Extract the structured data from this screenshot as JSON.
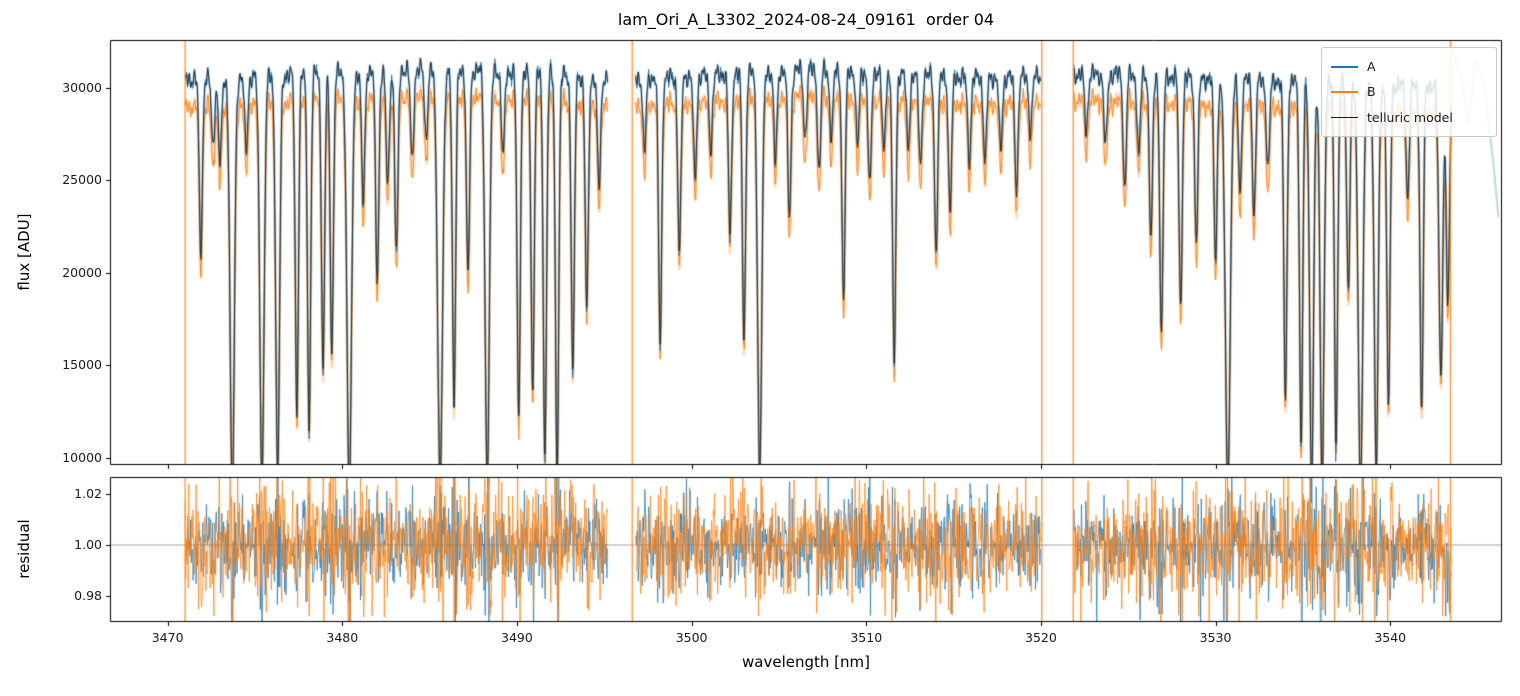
{
  "chart_data": {
    "type": "line",
    "title": "lam_Ori_A_L3302_2024-08-24_09161  order 04",
    "xlabel": "wavelength [nm]",
    "ylabel_flux": "flux [ADU]",
    "ylabel_residual": "residual",
    "xlim": [
      3466.7,
      3546.4
    ],
    "flux_ylim": [
      9600,
      32600
    ],
    "residual_ylim": [
      0.97,
      1.0265
    ],
    "x_ticks": [
      3470,
      3480,
      3490,
      3500,
      3510,
      3520,
      3530,
      3540
    ],
    "flux_ticks": [
      10000,
      15000,
      20000,
      25000,
      30000
    ],
    "residual_ticks": [
      0.98,
      1.0,
      1.02
    ],
    "residual_reference": 1.0,
    "grid": false,
    "legend_position": "upper right",
    "legend": [
      {
        "label": "A",
        "color": "#1f77b4"
      },
      {
        "label": "B",
        "color": "#ff7f0e"
      },
      {
        "label": "telluric model",
        "color": "#1a1a1a"
      }
    ],
    "series": {
      "A": {
        "color": "#1f77b4",
        "continuum_level": 31050
      },
      "B": {
        "color": "#ff7f0e",
        "continuum_level": 29570
      },
      "telluric_model": {
        "color": "#1a1a1a"
      }
    },
    "segments": [
      [
        3471.0,
        3495.2
      ],
      [
        3496.8,
        3520.0
      ],
      [
        3521.9,
        3543.5
      ]
    ],
    "continuum": {
      "A_base": 31050,
      "B_offset": -1480,
      "bumps": [
        [
          3485.5,
          650,
          5.5
        ],
        [
          3507.0,
          600,
          5.0
        ],
        [
          3523.5,
          350,
          4.0
        ],
        [
          3476.0,
          150,
          3.0
        ],
        [
          3541.0,
          -300,
          4.0
        ]
      ]
    },
    "absorption_lines": [
      [
        3471.9,
        0.31
      ],
      [
        3472.6,
        0.12
      ],
      [
        3473.0,
        0.15
      ],
      [
        3473.7,
        0.75,
        0.12
      ],
      [
        3474.5,
        0.13
      ],
      [
        3475.4,
        0.72,
        0.12
      ],
      [
        3476.3,
        0.7,
        0.11
      ],
      [
        3477.4,
        0.6
      ],
      [
        3478.1,
        0.63
      ],
      [
        3478.9,
        0.52
      ],
      [
        3479.4,
        0.49
      ],
      [
        3480.4,
        0.74,
        0.13
      ],
      [
        3481.2,
        0.23
      ],
      [
        3482.0,
        0.37
      ],
      [
        3482.6,
        0.2
      ],
      [
        3483.1,
        0.32
      ],
      [
        3484.0,
        0.16
      ],
      [
        3484.8,
        0.12
      ],
      [
        3485.6,
        0.72,
        0.14
      ],
      [
        3486.4,
        0.59
      ],
      [
        3487.2,
        0.36
      ],
      [
        3488.3,
        0.72,
        0.12
      ],
      [
        3489.2,
        0.15
      ],
      [
        3490.1,
        0.61
      ],
      [
        3490.9,
        0.56
      ],
      [
        3491.6,
        0.68
      ],
      [
        3492.3,
        0.72
      ],
      [
        3493.2,
        0.52
      ],
      [
        3494.0,
        0.41
      ],
      [
        3494.7,
        0.2
      ],
      [
        3497.3,
        0.13
      ],
      [
        3498.2,
        0.47
      ],
      [
        3499.3,
        0.31
      ],
      [
        3500.2,
        0.18
      ],
      [
        3501.1,
        0.13
      ],
      [
        3502.2,
        0.28
      ],
      [
        3503.0,
        0.47
      ],
      [
        3503.9,
        0.7,
        0.12
      ],
      [
        3504.8,
        0.16
      ],
      [
        3505.6,
        0.26
      ],
      [
        3506.5,
        0.12
      ],
      [
        3507.3,
        0.18
      ],
      [
        3508.0,
        0.12
      ],
      [
        3508.7,
        0.4
      ],
      [
        3509.5,
        0.13
      ],
      [
        3510.2,
        0.2
      ],
      [
        3511.0,
        0.14
      ],
      [
        3511.6,
        0.51
      ],
      [
        3512.4,
        0.13
      ],
      [
        3513.1,
        0.16
      ],
      [
        3514.0,
        0.31
      ],
      [
        3514.8,
        0.24
      ],
      [
        3515.9,
        0.15
      ],
      [
        3516.8,
        0.15
      ],
      [
        3517.7,
        0.13
      ],
      [
        3518.6,
        0.2
      ],
      [
        3519.4,
        0.1
      ],
      [
        3522.6,
        0.1
      ],
      [
        3523.7,
        0.13
      ],
      [
        3524.8,
        0.2
      ],
      [
        3525.6,
        0.14
      ],
      [
        3526.3,
        0.29
      ],
      [
        3526.9,
        0.46
      ],
      [
        3528.0,
        0.41
      ],
      [
        3528.9,
        0.29
      ],
      [
        3530.0,
        0.32
      ],
      [
        3530.7,
        0.72,
        0.14
      ],
      [
        3531.4,
        0.2
      ],
      [
        3532.2,
        0.24
      ],
      [
        3533.0,
        0.16
      ],
      [
        3534.0,
        0.57
      ],
      [
        3534.9,
        0.65
      ],
      [
        3535.5,
        0.72,
        0.11
      ],
      [
        3536.1,
        0.72,
        0.11
      ],
      [
        3536.9,
        0.65
      ],
      [
        3537.6,
        0.36
      ],
      [
        3538.3,
        0.72,
        0.13
      ],
      [
        3539.2,
        0.69,
        0.11
      ],
      [
        3539.9,
        0.58
      ],
      [
        3541.0,
        0.2
      ],
      [
        3541.8,
        0.59
      ],
      [
        3542.9,
        0.52,
        0.11
      ],
      [
        3543.3,
        0.4
      ]
    ],
    "artifact_spikes": [
      {
        "w": 3471.0,
        "color": "#ff7f0e"
      },
      {
        "w": 3496.6,
        "color": "#ff7f0e"
      },
      {
        "w": 3520.05,
        "color": "#ff7f0e"
      },
      {
        "w": 3521.85,
        "color": "#ff7f0e"
      },
      {
        "w": 3543.45,
        "color": "#ff7f0e"
      }
    ],
    "faint_edge_feature": {
      "x": [
        3543.6,
        3544.1,
        3544.5,
        3544.9,
        3545.4,
        3545.9,
        3546.2
      ],
      "flux": [
        32000,
        30500,
        28000,
        31500,
        30000,
        26000,
        23000
      ],
      "color": "#1f77b4",
      "alpha": 0.28
    },
    "residual_noise_sigma_A": 0.0075,
    "residual_noise_sigma_B": 0.0095
  }
}
